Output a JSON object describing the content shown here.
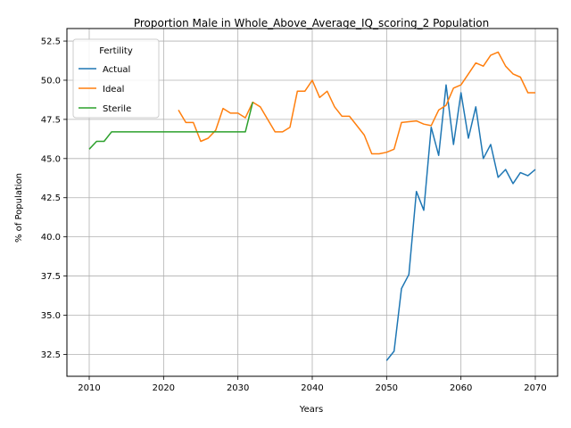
{
  "chart_data": {
    "type": "line",
    "title": "Proportion Male in Whole_Above_Average_IQ_scoring_2 Population",
    "xlabel": "Years",
    "ylabel": "% of Population",
    "xlim": [
      2007,
      2073
    ],
    "ylim": [
      31.1,
      53.3
    ],
    "xticks": [
      2010,
      2020,
      2030,
      2040,
      2050,
      2060,
      2070
    ],
    "yticks": [
      32.5,
      35.0,
      37.5,
      40.0,
      42.5,
      45.0,
      47.5,
      50.0,
      52.5
    ],
    "ytick_labels": [
      "32.5",
      "35.0",
      "37.5",
      "40.0",
      "42.5",
      "45.0",
      "47.5",
      "50.0",
      "52.5"
    ],
    "grid": true,
    "legend": {
      "title": "Fertility",
      "placement": "top-left"
    },
    "series": [
      {
        "name": "Actual",
        "color": "#1f77b4",
        "x": [
          2050,
          2051,
          2052,
          2053,
          2054,
          2055,
          2056,
          2057,
          2058,
          2059,
          2060,
          2061,
          2062,
          2063,
          2064,
          2065,
          2066,
          2067,
          2068,
          2069,
          2070
        ],
        "y": [
          32.1,
          32.7,
          36.7,
          37.6,
          42.9,
          41.7,
          47.0,
          45.2,
          49.7,
          45.9,
          49.2,
          46.3,
          48.3,
          45.0,
          45.9,
          43.8,
          44.3,
          43.4,
          44.1,
          43.9,
          44.3
        ]
      },
      {
        "name": "Ideal",
        "color": "#ff7f0e",
        "x": [
          2022,
          2023,
          2024,
          2025,
          2026,
          2027,
          2028,
          2029,
          2030,
          2031,
          2032,
          2033,
          2034,
          2035,
          2036,
          2037,
          2038,
          2039,
          2040,
          2041,
          2042,
          2043,
          2044,
          2045,
          2046,
          2047,
          2048,
          2049,
          2050,
          2051,
          2052,
          2053,
          2054,
          2055,
          2056,
          2057,
          2058,
          2059,
          2060,
          2061,
          2062,
          2063,
          2064,
          2065,
          2066,
          2067,
          2068,
          2069,
          2070
        ],
        "y": [
          48.1,
          47.3,
          47.3,
          46.1,
          46.3,
          46.8,
          48.2,
          47.9,
          47.9,
          47.6,
          48.6,
          48.3,
          47.5,
          46.7,
          46.7,
          47.0,
          49.3,
          49.3,
          50.0,
          48.9,
          49.3,
          48.3,
          47.7,
          47.7,
          47.1,
          46.5,
          45.3,
          45.3,
          45.4,
          45.6,
          47.3,
          47.35,
          47.4,
          47.2,
          47.1,
          48.1,
          48.4,
          49.5,
          49.7,
          50.4,
          51.1,
          50.9,
          51.6,
          51.8,
          50.9,
          50.4,
          50.2,
          49.2,
          49.2
        ]
      },
      {
        "name": "Sterile",
        "color": "#2ca02c",
        "x": [
          2010,
          2011,
          2012,
          2013,
          2014,
          2015,
          2016,
          2017,
          2018,
          2019,
          2020,
          2021,
          2022,
          2023,
          2024,
          2025,
          2026,
          2027,
          2028,
          2029,
          2030,
          2031,
          2032
        ],
        "y": [
          45.6,
          46.1,
          46.1,
          46.7,
          46.7,
          46.7,
          46.7,
          46.7,
          46.7,
          46.7,
          46.7,
          46.7,
          46.7,
          46.7,
          46.7,
          46.7,
          46.7,
          46.7,
          46.7,
          46.7,
          46.7,
          46.7,
          48.6
        ]
      }
    ]
  }
}
